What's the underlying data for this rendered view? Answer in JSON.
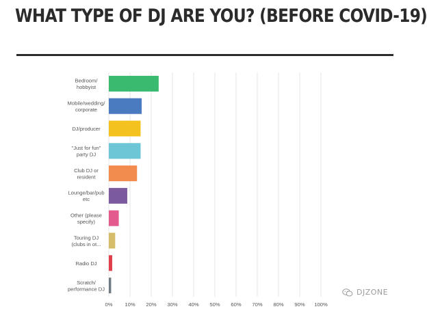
{
  "page": {
    "title": "WHAT TYPE OF DJ ARE YOU? (BEFORE COVID-19)",
    "watermark_text": "DJZONE",
    "watermark_icon": "wechat-icon"
  },
  "colors": {
    "grid": "#e6e6e6",
    "bar_colors": [
      "#3aba6f",
      "#4a7bc0",
      "#f4c21f",
      "#6cc6d6",
      "#f28b4e",
      "#7b5aa0",
      "#e35a8e",
      "#d4bc6b",
      "#df3e4a",
      "#6f7a82"
    ]
  },
  "chart_data": {
    "type": "bar",
    "orientation": "horizontal",
    "title": "WHAT TYPE OF DJ ARE YOU? (BEFORE COVID-19)",
    "categories": [
      [
        "Bedroom/",
        "hobbyist"
      ],
      [
        "Mobile/wedding/",
        "corporate"
      ],
      [
        "DJ/producer"
      ],
      [
        "\"Just for fun\"",
        "party DJ"
      ],
      [
        "Club DJ or",
        "resident"
      ],
      [
        "Lounge/bar/pub",
        "etc"
      ],
      [
        "Other (please",
        "specify)"
      ],
      [
        "Touring DJ",
        "(clubs in ot..."
      ],
      [
        "Radio DJ"
      ],
      [
        "Scratch/",
        "performance DJ"
      ]
    ],
    "values": [
      23.5,
      15.5,
      15,
      15,
      13.3,
      8.7,
      4.7,
      3,
      1.6,
      1.1
    ],
    "xlim": [
      0,
      100
    ],
    "xticks": [
      "0%",
      "10%",
      "20%",
      "30%",
      "40%",
      "50%",
      "60%",
      "70%",
      "80%",
      "90%",
      "100%"
    ],
    "grid": true,
    "xlabel": "",
    "ylabel": ""
  }
}
